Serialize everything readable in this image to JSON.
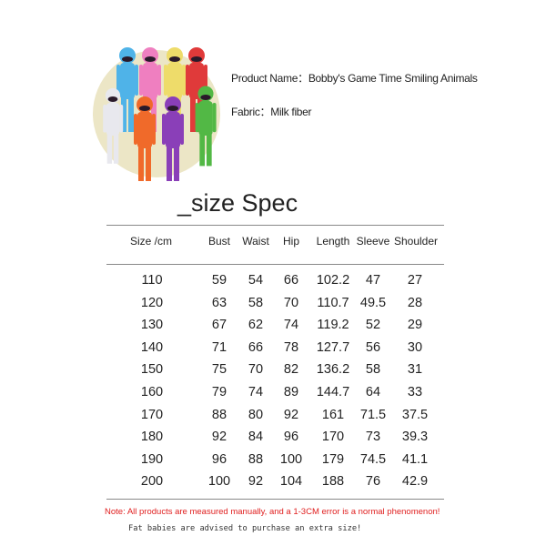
{
  "product": {
    "name_label": "Product Name：",
    "name": "Bobby's Game Time Smiling Animals",
    "fabric_label": "Fabric：",
    "fabric": "Milk fiber"
  },
  "image": {
    "description_icon": "costume-group-photo",
    "figure_colors": [
      "#4fb3e8",
      "#ef7fc0",
      "#eedc6a",
      "#e03a3a",
      "#e8e8ee",
      "#f06a2a",
      "#8a3fb8",
      "#52b845"
    ],
    "background": "#ece6c6"
  },
  "title": "_size Spec",
  "table": {
    "headers": [
      "Size /cm",
      "Bust",
      "Waist",
      "Hip",
      "Length",
      "Sleeve",
      "Shoulder"
    ],
    "rows": [
      [
        "110",
        "59",
        "54",
        "66",
        "102.2",
        "47",
        "27"
      ],
      [
        "120",
        "63",
        "58",
        "70",
        "110.7",
        "49.5",
        "28"
      ],
      [
        "130",
        "67",
        "62",
        "74",
        "119.2",
        "52",
        "29"
      ],
      [
        "140",
        "71",
        "66",
        "78",
        "127.7",
        "56",
        "30"
      ],
      [
        "150",
        "75",
        "70",
        "82",
        "136.2",
        "58",
        "31"
      ],
      [
        "160",
        "79",
        "74",
        "89",
        "144.7",
        "64",
        "33"
      ],
      [
        "170",
        "88",
        "80",
        "92",
        "161",
        "71.5",
        "37.5"
      ],
      [
        "180",
        "92",
        "84",
        "96",
        "170",
        "73",
        "39.3"
      ],
      [
        "190",
        "96",
        "88",
        "100",
        "179",
        "74.5",
        "41.1"
      ],
      [
        "200",
        "100",
        "92",
        "104",
        "188",
        "76",
        "42.9"
      ]
    ]
  },
  "note": "Note: All products are measured manually, and a 1-3CM error is a normal phenomenon!",
  "advice": "Fat babies are advised to purchase an extra size!",
  "colors": {
    "note": "#e02020"
  }
}
